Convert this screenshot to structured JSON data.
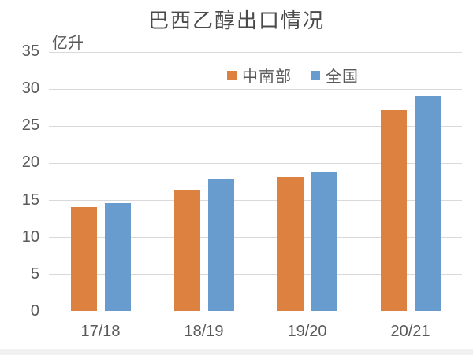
{
  "chart_data": {
    "type": "bar",
    "title": "巴西乙醇出口情况",
    "ylabel": "亿升",
    "xlabel": "",
    "categories": [
      "17/18",
      "18/19",
      "19/20",
      "20/21"
    ],
    "series": [
      {
        "name": "中南部",
        "color": "#dd8140",
        "values": [
          14,
          16.3,
          18,
          27
        ]
      },
      {
        "name": "全国",
        "color": "#689cce",
        "values": [
          14.5,
          17.7,
          18.8,
          29
        ]
      }
    ],
    "ylim": [
      0,
      35
    ],
    "ytick_step": 5,
    "grid": true,
    "legend_position": "top-center"
  },
  "colors": {
    "gridline": "#d9d9d9",
    "axis_text": "#595959",
    "title_text": "#4a4a4a",
    "background": "#ffffff",
    "footer_band": "#f1f1f1"
  }
}
